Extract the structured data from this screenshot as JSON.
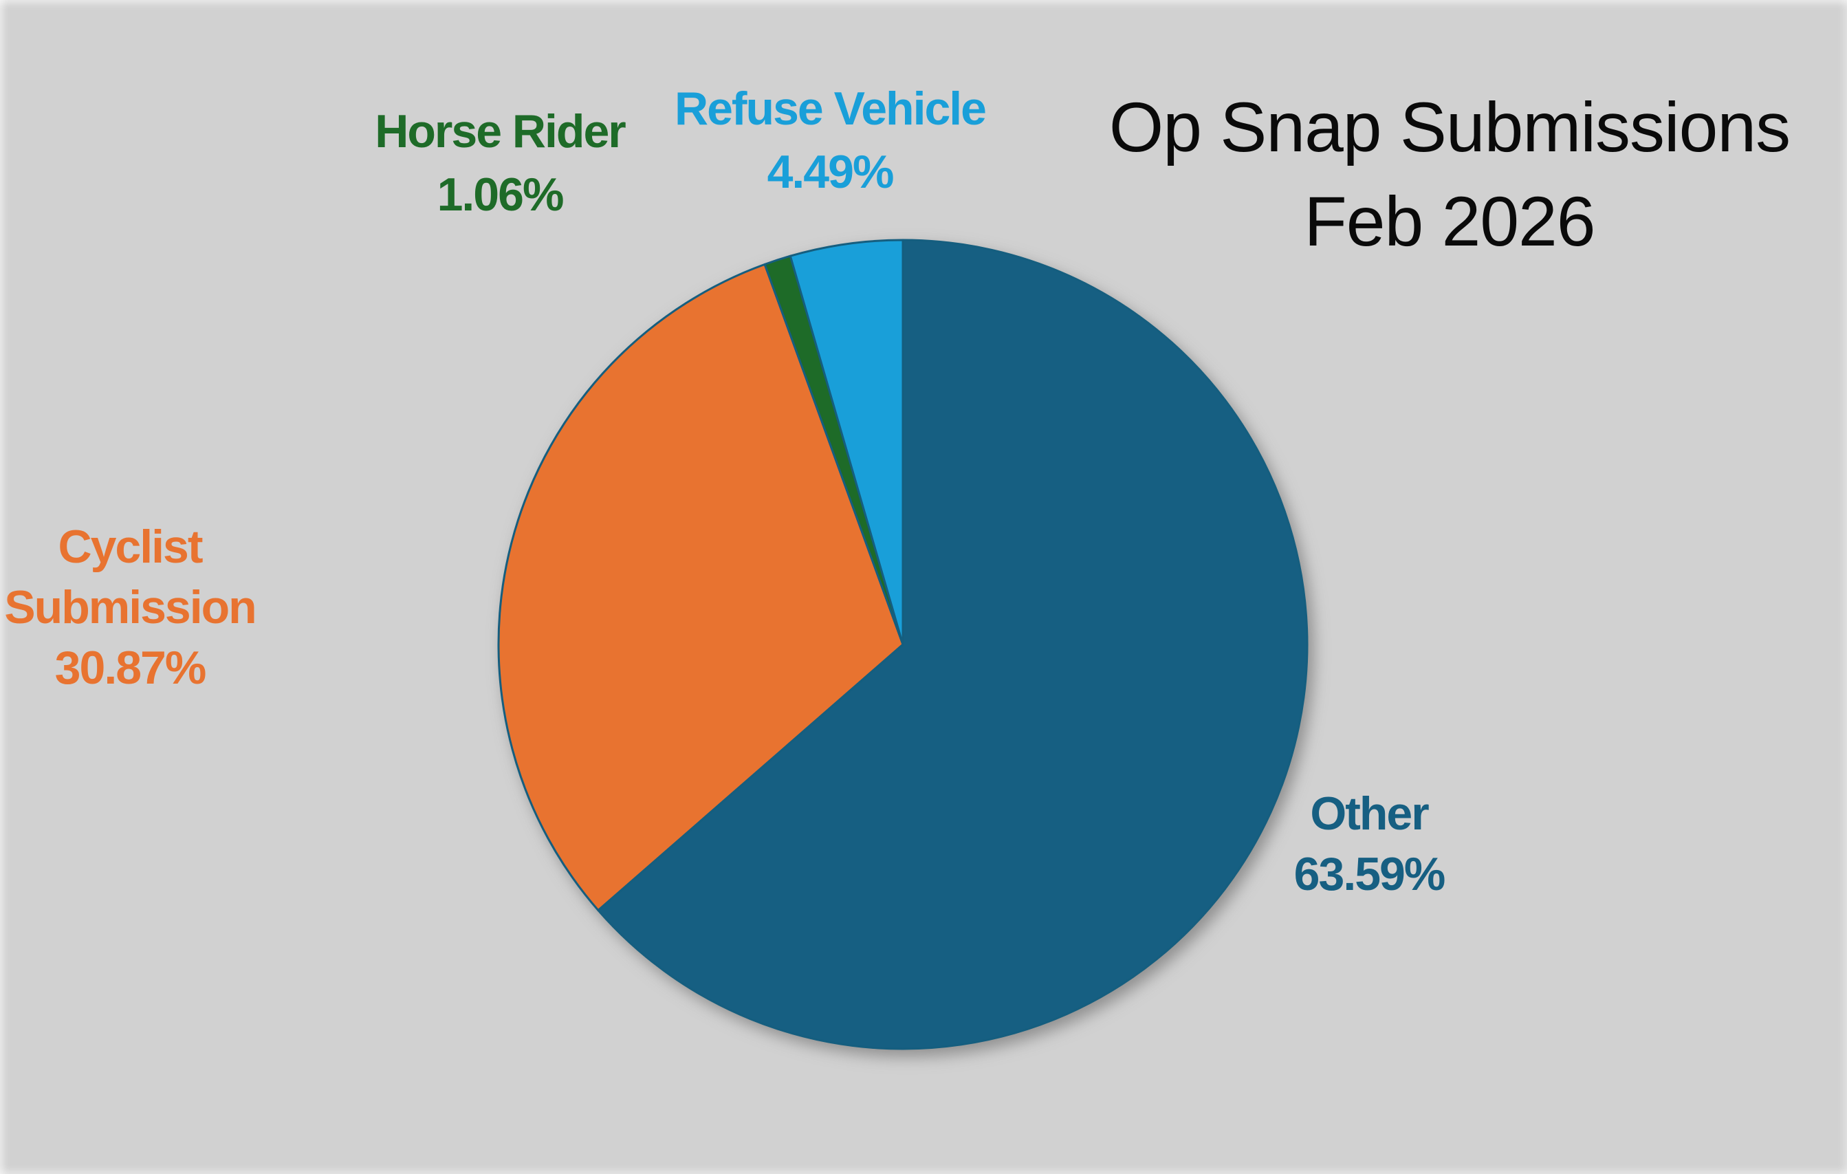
{
  "chart_data": {
    "type": "pie",
    "title": "Op Snap Submissions Feb 2026",
    "title_lines": [
      "Op Snap Submissions",
      "Feb 2026"
    ],
    "start_angle_deg": 0,
    "direction": "clockwise",
    "legend_position": "outside-callouts",
    "background_color": "#D1D1D1",
    "slice_border_color": "#155E7F",
    "slices": [
      {
        "label": "Other",
        "value_pct": 63.59,
        "display": "63.59%",
        "color": "#165F82"
      },
      {
        "label": "Cyclist Submission",
        "value_pct": 30.87,
        "display": "30.87%",
        "color": "#E87330"
      },
      {
        "label": "Horse Rider",
        "value_pct": 1.06,
        "display": "1.06%",
        "color": "#1E6B28"
      },
      {
        "label": "Refuse Vehicle",
        "value_pct": 4.49,
        "display": "4.49%",
        "color": "#199FD9"
      }
    ]
  },
  "title": {
    "lines": [
      "Op Snap Submissions",
      "Feb 2026"
    ],
    "color": "#0A0A0A"
  },
  "callouts": {
    "horse_rider": {
      "lines": [
        "Horse Rider",
        "1.06%"
      ],
      "color": "#1E6B28"
    },
    "refuse_vehicle": {
      "lines": [
        "Refuse Vehicle",
        "4.49%"
      ],
      "color": "#199FD9"
    },
    "cyclist_submission": {
      "lines": [
        "Cyclist",
        "Submission",
        "30.87%"
      ],
      "color": "#E87330"
    },
    "other": {
      "lines": [
        "Other",
        "63.59%"
      ],
      "color": "#165F82"
    }
  }
}
